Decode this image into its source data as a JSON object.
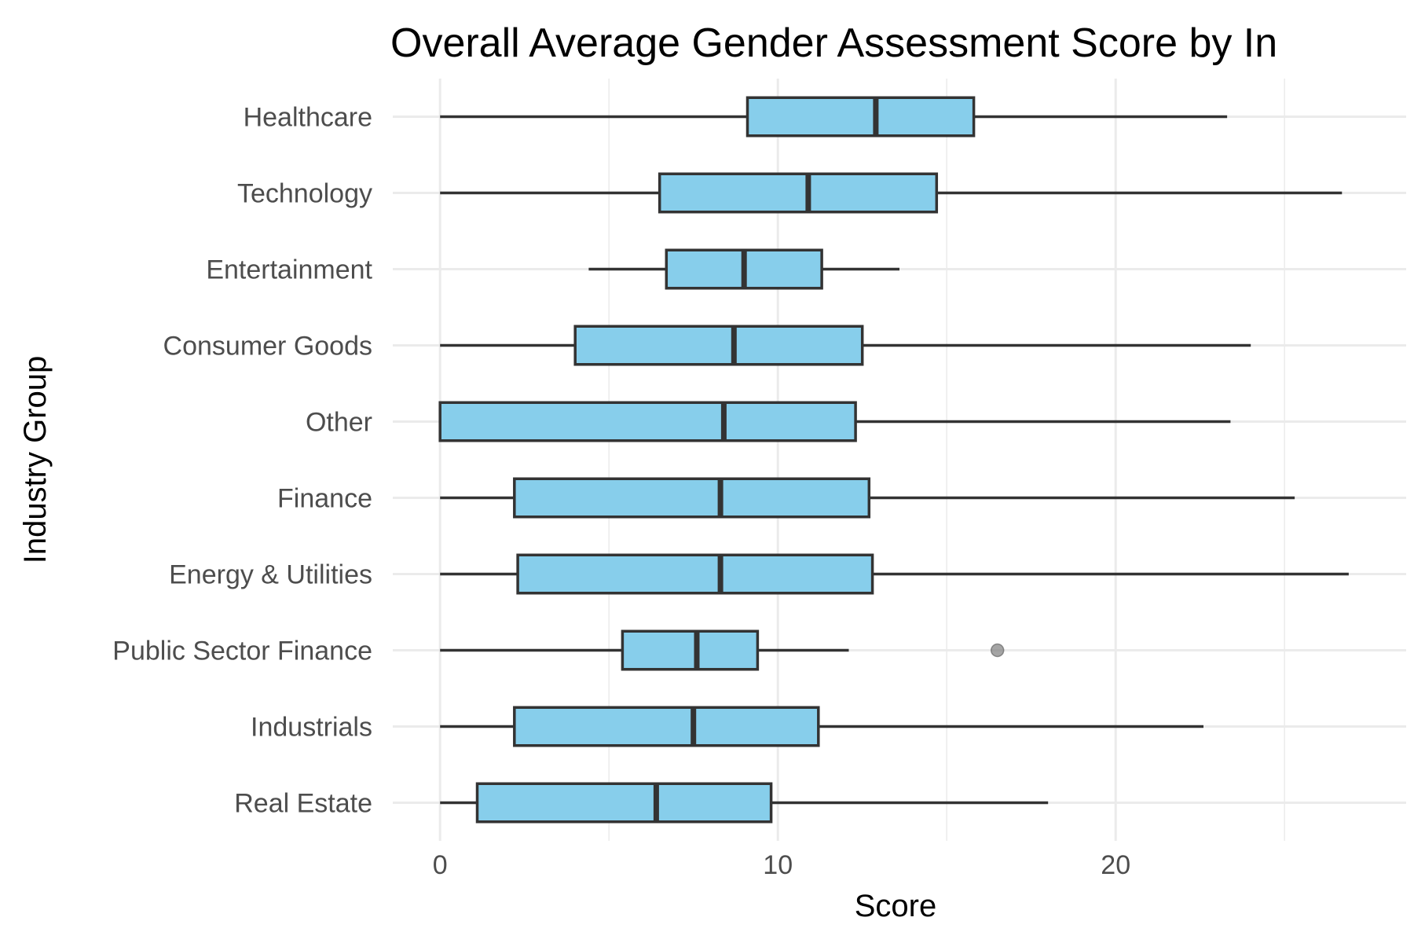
{
  "chart_data": {
    "type": "boxplot",
    "orientation": "horizontal",
    "title": "Overall Average Gender Assessment Score by In",
    "xlabel": "Score",
    "ylabel": "Industry Group",
    "xlim": [
      -1.4,
      28.6
    ],
    "xticks": [
      0,
      10,
      20
    ],
    "grid": true,
    "box_fill": "#87CEEB",
    "box_stroke": "#333333",
    "outlier_color": "#7f7f7f",
    "categories": [
      "Healthcare",
      "Technology",
      "Entertainment",
      "Consumer Goods",
      "Other",
      "Finance",
      "Energy & Utilities",
      "Public Sector Finance",
      "Industrials",
      "Real Estate"
    ],
    "boxes": [
      {
        "category": "Healthcare",
        "whisker_low": 0,
        "q1": 9.1,
        "median": 12.9,
        "q3": 15.8,
        "whisker_high": 23.3,
        "outliers": []
      },
      {
        "category": "Technology",
        "whisker_low": 0,
        "q1": 6.5,
        "median": 10.9,
        "q3": 14.7,
        "whisker_high": 26.7,
        "outliers": []
      },
      {
        "category": "Entertainment",
        "whisker_low": 4.4,
        "q1": 6.7,
        "median": 9.0,
        "q3": 11.3,
        "whisker_high": 13.6,
        "outliers": []
      },
      {
        "category": "Consumer Goods",
        "whisker_low": 0,
        "q1": 4.0,
        "median": 8.7,
        "q3": 12.5,
        "whisker_high": 24.0,
        "outliers": []
      },
      {
        "category": "Other",
        "whisker_low": 0,
        "q1": 0,
        "median": 8.4,
        "q3": 12.3,
        "whisker_high": 23.4,
        "outliers": []
      },
      {
        "category": "Finance",
        "whisker_low": 0,
        "q1": 2.2,
        "median": 8.3,
        "q3": 12.7,
        "whisker_high": 25.3,
        "outliers": []
      },
      {
        "category": "Energy & Utilities",
        "whisker_low": 0,
        "q1": 2.3,
        "median": 8.3,
        "q3": 12.8,
        "whisker_high": 26.9,
        "outliers": []
      },
      {
        "category": "Public Sector Finance",
        "whisker_low": 0,
        "q1": 5.4,
        "median": 7.6,
        "q3": 9.4,
        "whisker_high": 12.1,
        "outliers": [
          16.5
        ]
      },
      {
        "category": "Industrials",
        "whisker_low": 0,
        "q1": 2.2,
        "median": 7.5,
        "q3": 11.2,
        "whisker_high": 22.6,
        "outliers": []
      },
      {
        "category": "Real Estate",
        "whisker_low": 0,
        "q1": 1.1,
        "median": 6.4,
        "q3": 9.8,
        "whisker_high": 18.0,
        "outliers": []
      }
    ]
  }
}
